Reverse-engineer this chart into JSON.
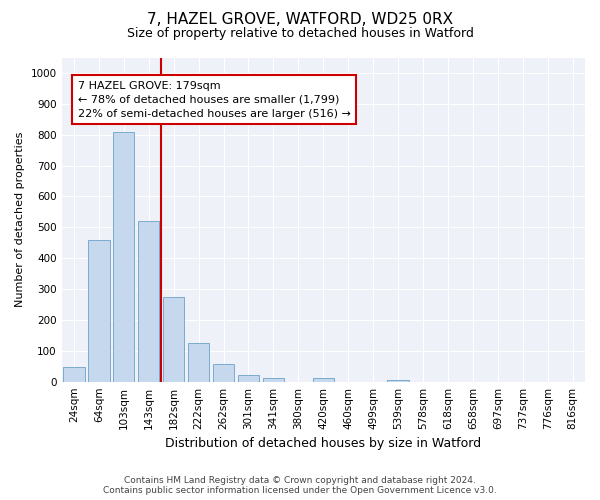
{
  "title1": "7, HAZEL GROVE, WATFORD, WD25 0RX",
  "title2": "Size of property relative to detached houses in Watford",
  "xlabel": "Distribution of detached houses by size in Watford",
  "ylabel": "Number of detached properties",
  "footer1": "Contains HM Land Registry data © Crown copyright and database right 2024.",
  "footer2": "Contains public sector information licensed under the Open Government Licence v3.0.",
  "categories": [
    "24sqm",
    "64sqm",
    "103sqm",
    "143sqm",
    "182sqm",
    "222sqm",
    "262sqm",
    "301sqm",
    "341sqm",
    "380sqm",
    "420sqm",
    "460sqm",
    "499sqm",
    "539sqm",
    "578sqm",
    "618sqm",
    "658sqm",
    "697sqm",
    "737sqm",
    "776sqm",
    "816sqm"
  ],
  "values": [
    46,
    460,
    810,
    520,
    275,
    125,
    57,
    22,
    12,
    0,
    12,
    0,
    0,
    7,
    0,
    0,
    0,
    0,
    0,
    0,
    0
  ],
  "bar_color": "#c5d8ee",
  "bar_edgecolor": "#7aabcf",
  "vline_color": "#cc0000",
  "annotation_text": "7 HAZEL GROVE: 179sqm\n← 78% of detached houses are smaller (1,799)\n22% of semi-detached houses are larger (516) →",
  "annotation_box_color": "#ffffff",
  "annotation_border_color": "#cc0000",
  "ylim": [
    0,
    1050
  ],
  "yticks": [
    0,
    100,
    200,
    300,
    400,
    500,
    600,
    700,
    800,
    900,
    1000
  ],
  "bg_color": "#eef2f8",
  "fig_bg": "#ffffff",
  "title1_fontsize": 11,
  "title2_fontsize": 9,
  "ylabel_fontsize": 8,
  "xlabel_fontsize": 9,
  "tick_fontsize": 7.5,
  "footer_fontsize": 6.5
}
